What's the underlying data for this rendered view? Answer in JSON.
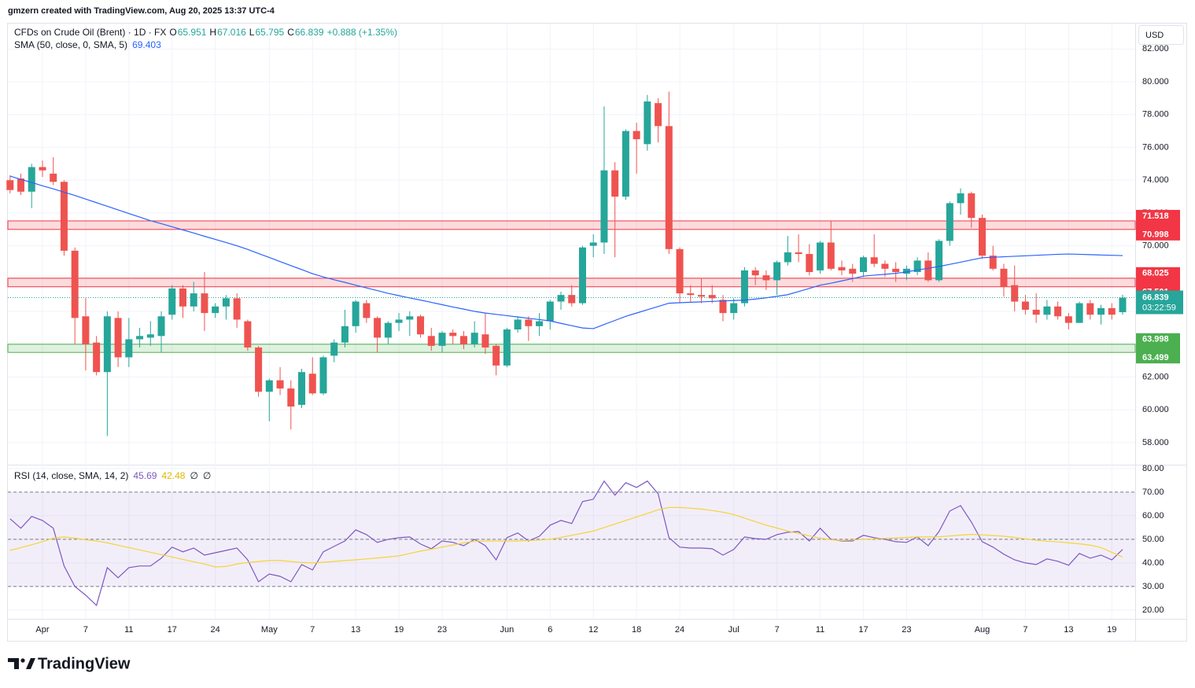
{
  "header": {
    "attribution": "gmzern created with TradingView.com, Aug 20, 2025 13:37 UTC-4"
  },
  "footer": {
    "logo": "TradingView"
  },
  "currency": "USD",
  "chart_data": [
    {
      "type": "candlestick",
      "categories": [
        null,
        null,
        null,
        "Apr",
        null,
        null,
        null,
        "7",
        null,
        null,
        null,
        "11",
        null,
        null,
        null,
        "17",
        null,
        null,
        null,
        "24",
        null,
        null,
        null,
        null,
        "May",
        null,
        null,
        null,
        "7",
        null,
        null,
        null,
        "13",
        null,
        null,
        null,
        "19",
        null,
        null,
        null,
        "23",
        null,
        null,
        null,
        null,
        null,
        "Jun",
        null,
        null,
        null,
        "6",
        null,
        null,
        null,
        "12",
        null,
        null,
        null,
        "18",
        null,
        null,
        null,
        "24",
        null,
        null,
        null,
        null,
        "Jul",
        null,
        null,
        null,
        "7",
        null,
        null,
        null,
        "11",
        null,
        null,
        null,
        "17",
        null,
        null,
        null,
        "23",
        null,
        null,
        null,
        null,
        null,
        null,
        "Aug",
        null,
        null,
        null,
        "7",
        null,
        null,
        null,
        "13",
        null,
        null,
        null,
        "19",
        null
      ],
      "series": [
        {
          "name": "CFDs on Crude Oil (Brent) · 1D · FX",
          "up_color": "#26a69a",
          "down_color": "#ef5350",
          "open": [
            74.0,
            74.1,
            73.3,
            74.8,
            74.4,
            73.9,
            69.7,
            65.7,
            64.1,
            62.3,
            65.6,
            63.2,
            64.3,
            64.4,
            64.5,
            65.8,
            67.4,
            66.3,
            67.1,
            65.9,
            66.3,
            66.8,
            65.4,
            63.8,
            61.1,
            61.8,
            61.3,
            60.3,
            62.2,
            61.0,
            63.3,
            64.1,
            65.1,
            66.5,
            65.6,
            64.4,
            65.3,
            65.5,
            65.7,
            64.5,
            63.9,
            64.7,
            64.5,
            64.0,
            64.6,
            63.9,
            62.7,
            64.9,
            65.5,
            65.1,
            65.4,
            66.6,
            67.0,
            66.5,
            70.0,
            70.2,
            74.6,
            73.0,
            77.0,
            76.2,
            78.7,
            77.3,
            69.8,
            67.1,
            67.0,
            67.0,
            66.7,
            65.9,
            66.5,
            68.5,
            68.2,
            67.9,
            69.0,
            69.6,
            69.5,
            68.5,
            70.2,
            68.7,
            68.6,
            68.4,
            69.3,
            68.9,
            68.6,
            68.3,
            68.4,
            69.1,
            67.9,
            70.3,
            72.6,
            73.2,
            71.7,
            69.4,
            68.6,
            67.6,
            66.6,
            66.1,
            65.8,
            66.3,
            65.7,
            65.3,
            66.5,
            65.8,
            66.2,
            65.951
          ],
          "high": [
            74.3,
            74.4,
            75.0,
            75.2,
            75.4,
            74.0,
            69.9,
            66.8,
            64.5,
            66.0,
            66.0,
            65.6,
            65.0,
            65.4,
            66.0,
            67.6,
            67.6,
            67.8,
            68.4,
            66.5,
            67.0,
            67.1,
            65.5,
            63.9,
            61.9,
            62.6,
            61.8,
            62.5,
            63.2,
            63.3,
            64.3,
            66.1,
            66.7,
            66.7,
            65.7,
            65.4,
            65.9,
            66.0,
            65.8,
            65.0,
            64.8,
            64.9,
            64.8,
            65.4,
            65.9,
            64.0,
            65.0,
            65.7,
            65.7,
            65.9,
            66.7,
            67.2,
            67.6,
            70.0,
            70.7,
            78.5,
            75.1,
            77.1,
            77.5,
            79.2,
            79.0,
            79.4,
            69.9,
            67.6,
            68.0,
            67.6,
            67.0,
            66.8,
            68.7,
            68.7,
            68.5,
            69.1,
            70.6,
            70.7,
            70.1,
            70.3,
            71.5,
            69.1,
            68.9,
            69.4,
            70.7,
            69.1,
            69.0,
            68.8,
            69.3,
            69.6,
            70.4,
            72.7,
            73.5,
            73.3,
            71.9,
            70.0,
            68.9,
            68.8,
            67.0,
            67.1,
            66.7,
            66.6,
            65.9,
            66.6,
            66.7,
            66.4,
            66.5,
            67.016
          ],
          "low": [
            73.2,
            73.1,
            72.3,
            74.2,
            73.7,
            69.4,
            64.0,
            62.4,
            62.1,
            58.4,
            62.6,
            62.6,
            63.8,
            63.9,
            63.5,
            65.5,
            65.6,
            66.0,
            64.8,
            65.6,
            65.5,
            65.0,
            63.6,
            60.8,
            59.3,
            60.9,
            58.8,
            60.1,
            60.9,
            60.9,
            62.9,
            63.8,
            64.7,
            65.3,
            63.5,
            64.0,
            64.8,
            64.5,
            64.4,
            63.6,
            63.5,
            64.0,
            63.7,
            63.8,
            63.4,
            62.1,
            62.6,
            64.7,
            64.2,
            64.5,
            64.9,
            66.1,
            66.3,
            66.4,
            69.3,
            69.5,
            69.3,
            72.8,
            74.4,
            75.8,
            76.3,
            69.5,
            66.5,
            66.6,
            66.5,
            66.5,
            65.4,
            65.5,
            66.3,
            67.6,
            67.3,
            67.0,
            68.8,
            69.0,
            68.2,
            68.3,
            68.5,
            68.2,
            67.8,
            68.1,
            68.7,
            68.1,
            67.8,
            67.9,
            68.2,
            67.8,
            67.8,
            70.0,
            71.9,
            71.1,
            69.2,
            68.5,
            66.9,
            66.0,
            65.8,
            65.3,
            65.5,
            65.5,
            64.9,
            65.3,
            65.5,
            65.2,
            65.5,
            65.795
          ],
          "close": [
            73.4,
            73.3,
            74.8,
            74.6,
            73.9,
            69.7,
            65.6,
            64.0,
            62.3,
            65.7,
            63.2,
            64.3,
            64.5,
            64.6,
            65.7,
            67.4,
            66.3,
            67.1,
            65.9,
            66.3,
            66.8,
            65.5,
            63.8,
            61.1,
            61.8,
            61.3,
            60.2,
            62.3,
            61.0,
            63.2,
            64.1,
            65.1,
            66.6,
            65.6,
            64.4,
            65.3,
            65.5,
            65.7,
            64.6,
            63.9,
            64.7,
            64.5,
            64.0,
            64.7,
            63.8,
            62.7,
            64.9,
            65.5,
            65.1,
            65.4,
            66.6,
            67.0,
            66.5,
            69.9,
            70.2,
            74.6,
            73.0,
            77.0,
            76.5,
            78.8,
            77.3,
            69.8,
            67.1,
            67.0,
            66.9,
            66.8,
            65.9,
            66.5,
            68.5,
            68.2,
            67.9,
            69.0,
            69.6,
            69.5,
            68.4,
            70.2,
            68.6,
            68.5,
            68.3,
            69.3,
            68.9,
            68.6,
            68.4,
            68.6,
            69.1,
            67.9,
            70.3,
            72.6,
            73.2,
            71.7,
            69.4,
            68.6,
            67.5,
            66.6,
            66.1,
            65.8,
            66.3,
            65.7,
            65.3,
            66.5,
            65.8,
            66.2,
            65.8,
            66.839
          ]
        },
        {
          "name": "SMA (50, close, 0, SMA, 5)",
          "color": "#2962ff",
          "values": [
            74.25,
            74.05,
            73.86,
            73.66,
            73.47,
            73.27,
            73.07,
            72.85,
            72.63,
            72.41,
            72.19,
            71.97,
            71.75,
            71.53,
            71.35,
            71.16,
            70.97,
            70.78,
            70.58,
            70.39,
            70.2,
            70.0,
            69.78,
            69.53,
            69.29,
            69.04,
            68.79,
            68.55,
            68.3,
            68.1,
            67.93,
            67.77,
            67.6,
            67.43,
            67.27,
            67.1,
            66.96,
            66.82,
            66.69,
            66.55,
            66.41,
            66.27,
            66.14,
            66.0,
            65.9,
            65.82,
            65.74,
            65.66,
            65.58,
            65.5,
            65.42,
            65.27,
            65.13,
            64.99,
            64.95,
            65.2,
            65.45,
            65.7,
            65.9,
            66.1,
            66.3,
            66.5,
            66.53,
            66.56,
            66.58,
            66.61,
            66.64,
            66.66,
            66.69,
            66.75,
            66.83,
            66.92,
            67.02,
            67.21,
            67.4,
            67.6,
            67.72,
            67.86,
            68.0,
            68.15,
            68.21,
            68.26,
            68.32,
            68.41,
            68.52,
            68.63,
            68.74,
            68.87,
            69.0,
            69.14,
            69.27,
            69.3,
            69.33,
            69.36,
            69.39,
            69.42,
            69.45,
            69.48,
            69.5,
            69.48,
            69.46,
            69.44,
            69.42,
            69.403
          ]
        }
      ],
      "ohlc_labels": [
        "O",
        "H",
        "L",
        "C"
      ],
      "change": "+0.888 (+1.35%)",
      "zones": [
        {
          "top": 71.518,
          "bottom": 70.998,
          "color": "#f23645"
        },
        {
          "top": 68.025,
          "bottom": 67.501,
          "color": "#f23645"
        },
        {
          "top": 63.998,
          "bottom": 63.499,
          "color": "#4caf50"
        }
      ],
      "countdown": "03:22:59",
      "ylim": [
        56.7,
        83.55
      ],
      "yticks": [
        {
          "value": 58,
          "label": "58.000"
        },
        {
          "value": 60,
          "label": "60.000"
        },
        {
          "value": 62,
          "label": "62.000"
        },
        {
          "value": 64,
          "label": "64.000"
        },
        {
          "value": 66,
          "label": "66.000"
        },
        {
          "value": 68,
          "label": "68.000"
        },
        {
          "value": 70,
          "label": "70.000"
        },
        {
          "value": 72,
          "label": "72.000"
        },
        {
          "value": 74,
          "label": "74.000"
        },
        {
          "value": 76,
          "label": "76.000"
        },
        {
          "value": 78,
          "label": "78.000"
        },
        {
          "value": 80,
          "label": "80.000"
        },
        {
          "value": 82,
          "label": "82.000"
        }
      ],
      "grid": true
    },
    {
      "type": "line",
      "title": "RSI (14, close, SMA, 14, 2)",
      "series": [
        {
          "color": "#7e57c2",
          "values": [
            58.7,
            54.7,
            59.7,
            58,
            54.7,
            38.7,
            30,
            26.3,
            22,
            38,
            33.7,
            38,
            38.7,
            38.7,
            42,
            46.7,
            44.7,
            46.3,
            43.3,
            44.3,
            45.3,
            46.3,
            41.3,
            32,
            35.3,
            34.3,
            32,
            39.3,
            37,
            44.7,
            47,
            49.3,
            54,
            52,
            48.7,
            50,
            50.7,
            51,
            48,
            46,
            49.3,
            48.7,
            47.3,
            50,
            47.3,
            41.3,
            50.7,
            52.7,
            49.3,
            51.3,
            56,
            58,
            56.7,
            66,
            67,
            74.7,
            68.7,
            74,
            72,
            74.7,
            69.3,
            50.7,
            46.7,
            46.3,
            46.3,
            46,
            43.3,
            45.7,
            51,
            50.3,
            50,
            52,
            53,
            53.3,
            49.3,
            54.7,
            50,
            49.3,
            49.3,
            51.7,
            50.7,
            50,
            49,
            48.7,
            51,
            47.3,
            53.3,
            62,
            64.3,
            57.3,
            49,
            46.7,
            43.7,
            41.3,
            40,
            39.3,
            41.7,
            40.7,
            39,
            44,
            42,
            43.3,
            41.3,
            45.69
          ]
        },
        {
          "color": "#f5d33a",
          "values": [
            45.3,
            46.5,
            47.7,
            49,
            50.5,
            51,
            50.5,
            49.8,
            49.3,
            48.5,
            47.5,
            46.5,
            45.5,
            44.5,
            43.5,
            42.5,
            41.5,
            40.5,
            39.5,
            38.3,
            38.5,
            39.5,
            40.2,
            40.6,
            41,
            41,
            40.6,
            40.2,
            40,
            40.3,
            40.6,
            41,
            41.3,
            41.7,
            42.1,
            42.5,
            43,
            44,
            45,
            45.8,
            46.7,
            47.6,
            48.5,
            49.2,
            49.3,
            49.3,
            49.3,
            49.3,
            49.5,
            49.7,
            50,
            50.8,
            51.7,
            52.6,
            53.5,
            55,
            56.5,
            58,
            59.5,
            61,
            62.5,
            63.5,
            63.5,
            63.2,
            62.8,
            62.2,
            61.5,
            60.5,
            59,
            57.5,
            56,
            54.8,
            53.5,
            52.5,
            51.5,
            50.5,
            49.8,
            49.5,
            49.7,
            50,
            50.2,
            50.4,
            50.6,
            50.8,
            51,
            51,
            51.1,
            51.4,
            51.8,
            52.1,
            51.9,
            51.6,
            51.3,
            50.8,
            50.2,
            49.6,
            49.2,
            48.9,
            48.5,
            48.1,
            47.5,
            46.5,
            44.5,
            42.48
          ]
        }
      ],
      "na_labels": [
        "∅",
        "∅"
      ],
      "bands": [
        70,
        50,
        30
      ],
      "band_color": "#7e57c2",
      "ylim": [
        16.3,
        81.3
      ],
      "yticks": [
        {
          "value": 20,
          "label": "20.00"
        },
        {
          "value": 30,
          "label": "30.00"
        },
        {
          "value": 40,
          "label": "40.00"
        },
        {
          "value": 50,
          "label": "50.00"
        },
        {
          "value": 60,
          "label": "60.00"
        },
        {
          "value": 70,
          "label": "70.00"
        },
        {
          "value": 80,
          "label": "80.00"
        }
      ],
      "grid": true
    }
  ]
}
